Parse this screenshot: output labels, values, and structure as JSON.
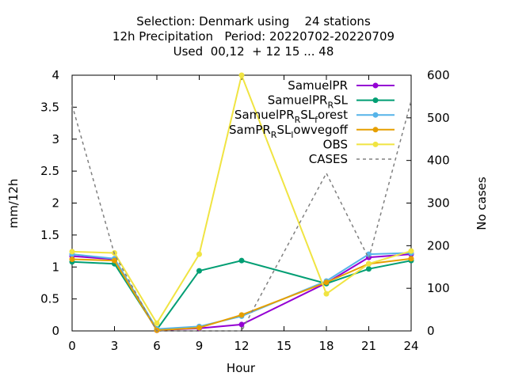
{
  "chart_data": {
    "type": "line",
    "title_lines": [
      "Selection: Denmark using    24 stations",
      "12h Precipitation   Period: 20220702-20220709",
      "Used  00,12  + 12 15 ... 48"
    ],
    "xlabel": "Hour",
    "ylabel": "mm/12h",
    "y2label": "No cases",
    "x": [
      0,
      3,
      6,
      9,
      12,
      18,
      21,
      24
    ],
    "xticks": [
      "0",
      "3",
      "6",
      "9",
      "12",
      "15",
      "18",
      "21",
      "24"
    ],
    "xlim": [
      0,
      24
    ],
    "ylim": [
      0,
      4
    ],
    "yticks": [
      "0",
      "0.5",
      "1",
      "1.5",
      "2",
      "2.5",
      "3",
      "3.5",
      "4"
    ],
    "y2lim": [
      0,
      600
    ],
    "y2ticks": [
      "0",
      "100",
      "200",
      "300",
      "400",
      "500",
      "600"
    ],
    "legend_position": "top-right",
    "series": [
      {
        "name_main": "SamuelPR",
        "name_sub": "",
        "name_tail": "",
        "color": "#9400d3",
        "marker": "circle",
        "dashed": false,
        "axis": "y",
        "values": [
          1.17,
          1.12,
          0.01,
          0.04,
          0.1,
          0.75,
          1.15,
          1.2
        ]
      },
      {
        "name_main": "SamuelPR",
        "name_sub": "R",
        "name_tail": "SL",
        "color": "#009e73",
        "marker": "circle",
        "dashed": false,
        "axis": "y",
        "values": [
          1.08,
          1.05,
          0.02,
          0.94,
          1.1,
          0.74,
          0.97,
          1.1
        ]
      },
      {
        "name_main": "SamuelPR",
        "name_sub": "R",
        "name_tail": "SL",
        "name_sub2": "f",
        "name_tail2": "orest",
        "color": "#56b4e9",
        "marker": "circle",
        "dashed": false,
        "axis": "y",
        "values": [
          1.2,
          1.13,
          0.03,
          0.07,
          0.23,
          0.78,
          1.2,
          1.22
        ]
      },
      {
        "name_main": "SamPR",
        "name_sub": "R",
        "name_tail": "SL",
        "name_sub2": "l",
        "name_tail2": "owvegoff",
        "color": "#e69f00",
        "marker": "circle",
        "dashed": false,
        "axis": "y",
        "values": [
          1.12,
          1.1,
          0.01,
          0.05,
          0.25,
          0.76,
          1.05,
          1.13
        ]
      },
      {
        "name_main": "OBS",
        "name_sub": "",
        "name_tail": "",
        "color": "#f0e442",
        "marker": "circle",
        "dashed": false,
        "axis": "y",
        "values": [
          1.24,
          1.22,
          0.12,
          1.2,
          4.0,
          0.58,
          1.05,
          1.25
        ]
      },
      {
        "name_main": "CASES",
        "name_sub": "",
        "name_tail": "",
        "color": "#808080",
        "marker": "none",
        "dashed": true,
        "axis": "y2",
        "values": [
          530,
          180,
          0,
          0,
          0,
          370,
          170,
          540
        ]
      }
    ]
  }
}
